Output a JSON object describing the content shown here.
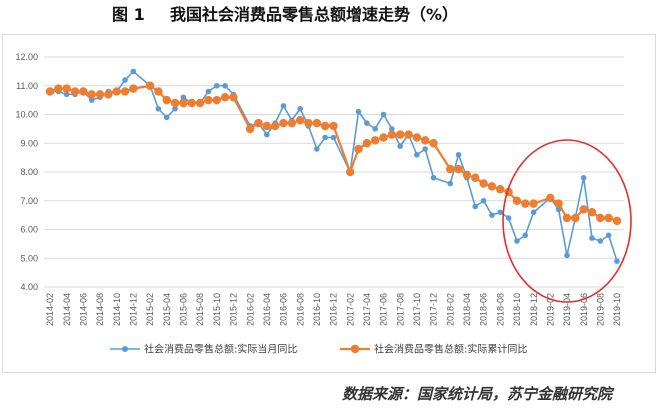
{
  "source": "数据来源：国家统计局，苏宁金融研究院",
  "highlight_color": "#E32D2D",
  "chart_data": {
    "type": "line",
    "figure_label": "图 1",
    "title": "我国社会消费品零售总额增速走势（%）",
    "ylim": [
      4,
      12
    ],
    "grid": true,
    "legend_position": "bottom",
    "y_tick_labels": [
      "12.00",
      "11.00",
      "10.00",
      "9.00",
      "8.00",
      "7.00",
      "6.00",
      "5.00",
      "4.00"
    ],
    "x_tick_labels": [
      "2014-02",
      "2014-04",
      "2014-06",
      "2014-08",
      "2014-10",
      "2014-12",
      "2015-02",
      "2015-04",
      "2015-06",
      "2015-08",
      "2015-10",
      "2015-12",
      "2016-02",
      "2016-04",
      "2016-06",
      "2016-08",
      "2016-10",
      "2016-12",
      "2017-02",
      "2017-04",
      "2017-06",
      "2017-08",
      "2017-10",
      "2017-12",
      "2018-02",
      "2018-04",
      "2018-06",
      "2018-08",
      "2018-10",
      "2018-12",
      "2019-02",
      "2019-04",
      "2019-06",
      "2019-08",
      "2019-10"
    ],
    "x": [
      "2014-02",
      "2014-03",
      "2014-04",
      "2014-05",
      "2014-06",
      "2014-07",
      "2014-08",
      "2014-09",
      "2014-10",
      "2014-11",
      "2014-12",
      "2015-02",
      "2015-03",
      "2015-04",
      "2015-05",
      "2015-06",
      "2015-07",
      "2015-08",
      "2015-09",
      "2015-10",
      "2015-11",
      "2015-12",
      "2016-02",
      "2016-03",
      "2016-04",
      "2016-05",
      "2016-06",
      "2016-07",
      "2016-08",
      "2016-09",
      "2016-10",
      "2016-11",
      "2016-12",
      "2017-02",
      "2017-03",
      "2017-04",
      "2017-05",
      "2017-06",
      "2017-07",
      "2017-08",
      "2017-09",
      "2017-10",
      "2017-11",
      "2017-12",
      "2018-02",
      "2018-03",
      "2018-04",
      "2018-05",
      "2018-06",
      "2018-07",
      "2018-08",
      "2018-09",
      "2018-10",
      "2018-11",
      "2018-12",
      "2019-02",
      "2019-03",
      "2019-04",
      "2019-05",
      "2019-06",
      "2019-07",
      "2019-08",
      "2019-09",
      "2019-10"
    ],
    "series": [
      {
        "name": "社会消费品零售总额:实际当月同比",
        "color": "#5B9BD5",
        "values": [
          10.8,
          10.8,
          10.7,
          10.7,
          10.8,
          10.5,
          10.6,
          10.8,
          10.8,
          11.2,
          11.5,
          11.0,
          10.2,
          9.9,
          10.2,
          10.6,
          10.4,
          10.4,
          10.8,
          11.0,
          11.0,
          10.7,
          9.6,
          9.7,
          9.3,
          9.7,
          10.3,
          9.8,
          10.2,
          9.6,
          8.8,
          9.2,
          9.2,
          8.0,
          10.1,
          9.7,
          9.5,
          10.0,
          9.5,
          8.9,
          9.3,
          8.6,
          8.8,
          7.8,
          7.6,
          8.6,
          7.8,
          6.8,
          7.0,
          6.5,
          6.6,
          6.4,
          5.6,
          5.8,
          6.6,
          7.1,
          6.7,
          5.1,
          6.4,
          7.8,
          5.7,
          5.6,
          5.8,
          4.9
        ]
      },
      {
        "name": "社会消费品零售总额:实际累计同比",
        "color": "#ED7D31",
        "values": [
          10.8,
          10.9,
          10.9,
          10.8,
          10.8,
          10.7,
          10.7,
          10.7,
          10.8,
          10.8,
          10.9,
          11.0,
          10.8,
          10.5,
          10.4,
          10.4,
          10.4,
          10.4,
          10.5,
          10.5,
          10.6,
          10.6,
          9.5,
          9.7,
          9.6,
          9.6,
          9.7,
          9.7,
          9.8,
          9.7,
          9.7,
          9.6,
          9.6,
          8.0,
          8.8,
          9.0,
          9.1,
          9.2,
          9.3,
          9.3,
          9.3,
          9.2,
          9.1,
          9.0,
          8.1,
          8.1,
          7.9,
          7.8,
          7.6,
          7.5,
          7.4,
          7.3,
          7.0,
          6.9,
          6.9,
          7.1,
          6.9,
          6.4,
          6.4,
          6.7,
          6.6,
          6.4,
          6.4,
          6.3
        ]
      }
    ]
  }
}
